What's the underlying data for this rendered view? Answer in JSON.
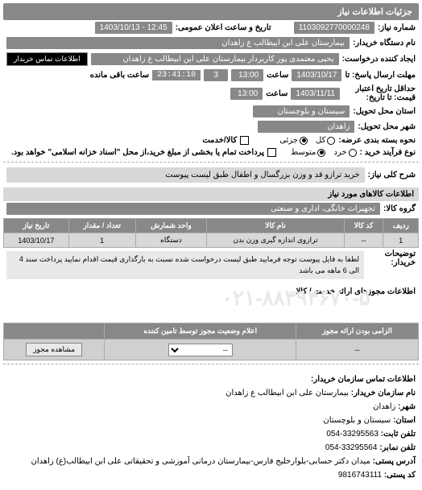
{
  "panel_title": "جزئیات اطلاعات نیاز",
  "fields": {
    "reqno_label": "شماره نیاز:",
    "reqno_value": "1103092770000248",
    "announce_label": "تاریخ و ساعت اعلان عمومی:",
    "announce_value": "12:45 - 1403/10/13",
    "buyer_label": "نام دستگاه خریدار:",
    "buyer_value": "بیمارستان علی ابن ابیطالب  ع  زاهدان",
    "creator_label": "ایجاد کننده درخواست:",
    "creator_value": "یحیی معتمدی پور کاربردار بیمارستان علی ابن ابیطالب  ع  زاهدان",
    "contact_btn": "اطلاعات تماس خریدار",
    "deadline_send_label": "مهلت ارسال پاسخ: تا",
    "deadline_date": "1403/10/17",
    "time_label": "ساعت",
    "deadline_time": "13:00",
    "remain_value": "3",
    "timer_value": "23:41:10",
    "remain_suffix": "ساعت باقی مانده",
    "validity_label": "حداقل تاریخ اعتبار قیمت: تا تاریخ:",
    "validity_date": "1403/11/11",
    "validity_time": "13:00",
    "province_label": "استان محل تحویل:",
    "province_value": "سیستان و بلوچستان",
    "city_label": "شهر محل تحویل:",
    "city_value": "زاهدان",
    "pkg_label": "نحوه بسته بندی عرضه:",
    "pkg_all": "کل",
    "pkg_part": "جزئی",
    "goods_label": "کالا/خدمت",
    "process_label": "نوع فرآیند خرید :",
    "proc_small": "خرد",
    "proc_medium": "متوسط",
    "proc_note": "پرداخت تمام یا بخشی از مبلغ خرید،از محل \"اسناد خزانه اسلامی\" خواهد بود.",
    "desc_label": "شرح کلی نیاز:",
    "desc_value": "خرید ترازو قد و وزن بزرگسال و اطفال طبق لیست پیوست",
    "items_header": "اطلاعات کالاهای مورد نیاز",
    "group_label": "گروه کالا:",
    "group_value": "تجهیزات خانگی، اداری و صنعتی"
  },
  "table": {
    "headers": [
      "ردیف",
      "کد کالا",
      "نام کالا",
      "واحد شمارش",
      "تعداد / مقدار",
      "تاریخ نیاز"
    ],
    "row": [
      "1",
      "--",
      "ترازوی اندازه گیری وزن بدن",
      "دستگاه",
      "1",
      "1403/10/17"
    ]
  },
  "note": {
    "label": "توضیحات خریدار:",
    "text": "لطفا به فایل پیوست توجه فرمایید طبق لیست درخواست شده نسبت به بارگذاری قیمت اقدام نمایید پرداخت سند 4 الی 6 ماهه می باشد"
  },
  "watermark": {
    "label": "اطلاعات مجوزهای ارائه خدمت / کالا",
    "phone": "۰۲۱-۸۸۳۹۴۶۷۰-۵"
  },
  "auth": {
    "col1": "الزامی بودن ارائه مجوز",
    "col2": "اعلام وضعیت مجوز توسط تامین کننده",
    "empty": "--",
    "sel": "--",
    "btn": "مشاهده مجوز"
  },
  "contact": {
    "header": "اطلاعات تماس سازمان خریدار:",
    "org_label": "نام سازمان خریدار:",
    "org_value": "بیمارستان علی ابن ابیطالب ع زاهدان",
    "city_label": "شهر:",
    "city_value": "زاهدان",
    "province_label": "استان:",
    "province_value": "سیستان و بلوچستان",
    "phone_label": "تلفن ثابت:",
    "phone_value": "33295563-054",
    "fax_label": "تلفن نمابر:",
    "fax_value": "33295564-054",
    "addr_label": "آدرس پستی:",
    "addr_value": "میدان دکتر حسابی-بلوارخلیج فارس-بیمارستان درمانی آموزشی و تحقیقاتی علی ابن ابیطالب(ع) زاهدان",
    "post_label": "کد پستی:",
    "post_value": "9816743111"
  }
}
